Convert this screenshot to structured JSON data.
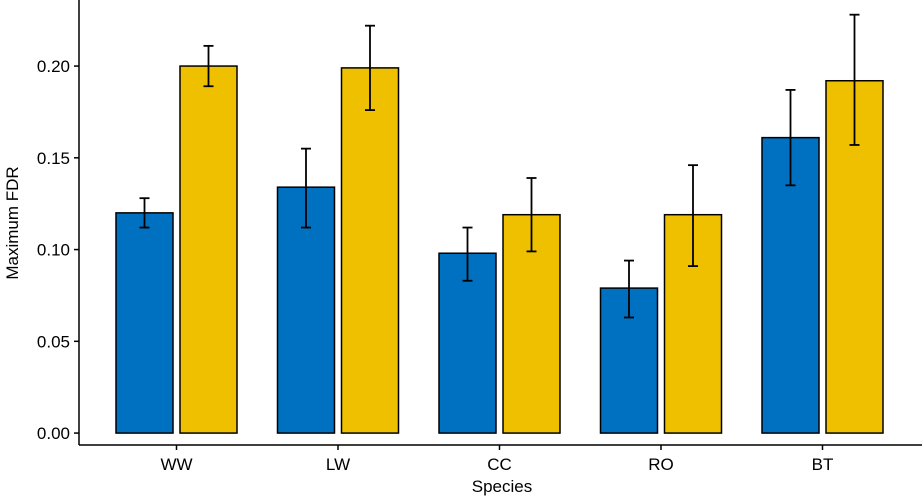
{
  "chart_data": {
    "type": "bar",
    "title": "",
    "xlabel": "Species",
    "ylabel": "Maximum FDR",
    "categories": [
      "WW",
      "LW",
      "CC",
      "RO",
      "BT"
    ],
    "series": [
      {
        "color": "#0070C0",
        "values": [
          0.12,
          0.134,
          0.098,
          0.079,
          0.161
        ],
        "err_low": [
          0.112,
          0.112,
          0.083,
          0.063,
          0.135
        ],
        "err_high": [
          0.128,
          0.155,
          0.112,
          0.094,
          0.187
        ]
      },
      {
        "color": "#EEC000",
        "values": [
          0.2,
          0.199,
          0.119,
          0.119,
          0.192
        ],
        "err_low": [
          0.189,
          0.176,
          0.099,
          0.091,
          0.157
        ],
        "err_high": [
          0.211,
          0.222,
          0.139,
          0.146,
          0.228
        ]
      }
    ],
    "yticks": [
      "0.00",
      "0.05",
      "0.10",
      "0.15",
      "0.20"
    ],
    "ylim": [
      -0.0065,
      0.236
    ],
    "grid": false,
    "legend": "none"
  }
}
